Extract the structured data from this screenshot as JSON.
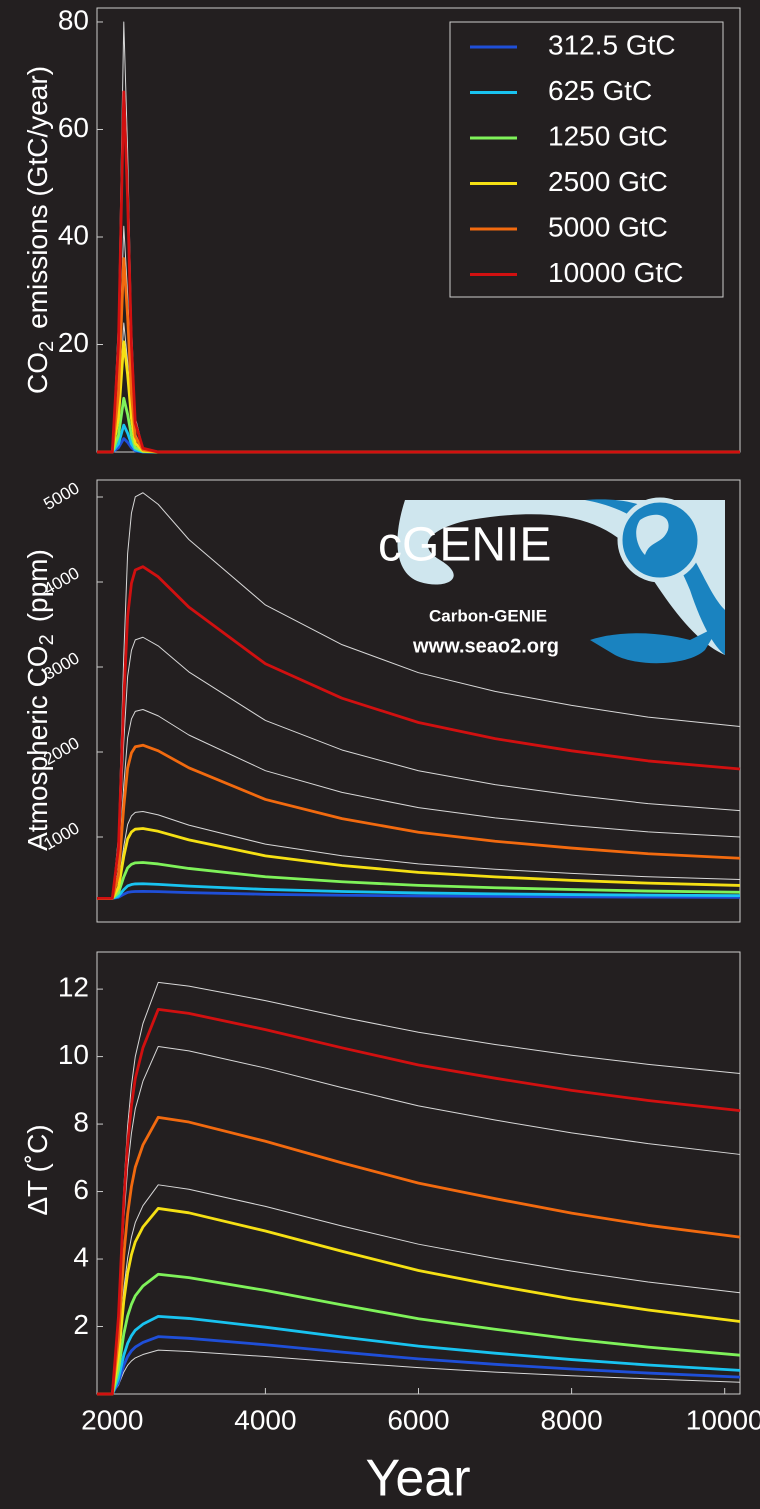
{
  "logo": {
    "title": "cGENIE",
    "subtitle": "Carbon-GENIE",
    "url": "www.seao2.org"
  },
  "chart_data": [
    {
      "type": "line",
      "ylabel": [
        "CO",
        "2",
        "emissions (GtC/year)"
      ],
      "x": [
        1800,
        2000,
        2080,
        2150,
        2200,
        2250,
        2300,
        2400,
        2600,
        3000,
        4000,
        5000,
        6000,
        7000,
        8000,
        9000,
        10200
      ],
      "xlim": [
        1800,
        10200
      ],
      "ylim": [
        0,
        82.6
      ],
      "yticks": [
        20,
        40,
        60,
        80
      ],
      "legend": "upper right",
      "series": [
        {
          "color": "#d8d8d8",
          "values": [
            0,
            0,
            24,
            80,
            56,
            24,
            6.4,
            0.8,
            0,
            0,
            0,
            0,
            0,
            0,
            0,
            0,
            0
          ]
        },
        {
          "color": "#d8d8d8",
          "values": [
            0,
            0,
            12.6,
            42,
            29.4,
            12.6,
            3.4,
            0.4,
            0,
            0,
            0,
            0,
            0,
            0,
            0,
            0,
            0
          ]
        },
        {
          "color": "#d8d8d8",
          "values": [
            0,
            0,
            7.2,
            24,
            16.8,
            7.2,
            1.9,
            0.2,
            0,
            0,
            0,
            0,
            0,
            0,
            0,
            0,
            0
          ]
        },
        {
          "name": "312.5 GtC",
          "color": "#1f4fd8",
          "values": [
            0,
            0,
            0.8,
            2.5,
            1.8,
            0.8,
            0.2,
            0,
            0,
            0,
            0,
            0,
            0,
            0,
            0,
            0,
            0
          ]
        },
        {
          "name": "625 GtC",
          "color": "#19c3f0",
          "values": [
            0,
            0,
            1.5,
            5,
            3.5,
            1.5,
            0.4,
            0.05,
            0,
            0,
            0,
            0,
            0,
            0,
            0,
            0,
            0
          ]
        },
        {
          "name": "1250 GtC",
          "color": "#7ff25a",
          "values": [
            0,
            0,
            3,
            10,
            7,
            3,
            0.8,
            0.1,
            0,
            0,
            0,
            0,
            0,
            0,
            0,
            0,
            0
          ]
        },
        {
          "name": "2500 GtC",
          "color": "#f5e014",
          "values": [
            0,
            0,
            6.2,
            20.5,
            14.4,
            6.2,
            1.6,
            0.2,
            0,
            0,
            0,
            0,
            0,
            0,
            0,
            0,
            0
          ]
        },
        {
          "name": "5000 GtC",
          "color": "#f26a0f",
          "values": [
            0,
            0,
            10.8,
            36,
            25.2,
            10.8,
            2.9,
            0.4,
            0,
            0,
            0,
            0,
            0,
            0,
            0,
            0,
            0
          ]
        },
        {
          "name": "10000 GtC",
          "color": "#d11010",
          "values": [
            0,
            0,
            20,
            67,
            47,
            20,
            5.4,
            0.7,
            0,
            0,
            0,
            0,
            0,
            0,
            0,
            0,
            0
          ]
        }
      ]
    },
    {
      "type": "line",
      "ylabel": [
        "Atmospheric CO",
        "2",
        "(ppm)"
      ],
      "x": [
        1800,
        2000,
        2080,
        2150,
        2200,
        2250,
        2300,
        2400,
        2600,
        3000,
        4000,
        5000,
        6000,
        7000,
        8000,
        9000,
        10200
      ],
      "xlim": [
        1800,
        10200
      ],
      "ylim": [
        0,
        5200
      ],
      "yticks": [
        1000,
        2000,
        3000,
        4000,
        5000
      ],
      "series": [
        {
          "color": "#d8d8d8",
          "values": [
            278,
            278,
            994,
            3141,
            4334,
            4811,
            5002,
            5050,
            4913,
            4500,
            3730,
            3263,
            2933,
            2713,
            2548,
            2410,
            2300
          ]
        },
        {
          "color": "#d8d8d8",
          "values": [
            278,
            278,
            739,
            2121,
            2889,
            3196,
            3319,
            3350,
            3248,
            2942,
            2371,
            2024,
            1779,
            1616,
            1494,
            1392,
            1310
          ]
        },
        {
          "color": "#d8d8d8",
          "values": [
            278,
            278,
            611,
            1611,
            2167,
            2389,
            2478,
            2500,
            2425,
            2200,
            1780,
            1525,
            1345,
            1225,
            1135,
            1060,
            1000
          ]
        },
        {
          "color": "#d8d8d8",
          "values": [
            278,
            278,
            431,
            891,
            1147,
            1249,
            1290,
            1300,
            1260,
            1140,
            916,
            780,
            684,
            620,
            572,
            532,
            500
          ]
        },
        {
          "color": "#1f4fd8",
          "values": [
            278,
            278,
            290,
            327,
            348,
            356,
            359,
            360,
            357,
            346,
            326,
            315,
            306,
            301,
            296,
            293,
            290
          ]
        },
        {
          "color": "#19c3f0",
          "values": [
            278,
            278,
            304,
            381,
            424,
            441,
            448,
            450,
            443,
            422,
            383,
            359,
            342,
            331,
            323,
            316,
            310
          ]
        },
        {
          "color": "#7ff25a",
          "values": [
            278,
            278,
            341,
            531,
            637,
            679,
            696,
            700,
            683,
            630,
            532,
            473,
            431,
            403,
            382,
            364,
            350
          ]
        },
        {
          "color": "#f5e014",
          "values": [
            278,
            278,
            401,
            771,
            977,
            1059,
            1092,
            1100,
            1067,
            966,
            778,
            665,
            584,
            531,
            490,
            457,
            430
          ]
        },
        {
          "color": "#f26a0f",
          "values": [
            278,
            278,
            548,
            1359,
            1810,
            1990,
            2062,
            2080,
            2014,
            1814,
            1442,
            1216,
            1056,
            950,
            870,
            803,
            750
          ]
        },
        {
          "color": "#d11010",
          "values": [
            278,
            278,
            863,
            2619,
            3595,
            3985,
            4141,
            4180,
            4061,
            3704,
            3038,
            2633,
            2347,
            2157,
            2014,
            1895,
            1800
          ]
        }
      ]
    },
    {
      "type": "line",
      "ylabel": [
        "ΔT (˚C)"
      ],
      "xlabel": "Year",
      "x": [
        1800,
        2000,
        2080,
        2150,
        2200,
        2250,
        2300,
        2400,
        2600,
        3000,
        4000,
        5000,
        6000,
        7000,
        8000,
        9000,
        10200
      ],
      "xlim": [
        1800,
        10200
      ],
      "xticks": [
        2000,
        4000,
        6000,
        8000,
        10000
      ],
      "ylim": [
        0,
        13.1
      ],
      "yticks": [
        2,
        4,
        6,
        8,
        10,
        12
      ],
      "series": [
        {
          "color": "#d8d8d8",
          "values": [
            0,
            0,
            2.44,
            6.1,
            7.93,
            9.15,
            10.0,
            10.98,
            12.2,
            12.09,
            11.66,
            11.17,
            10.72,
            10.36,
            10.04,
            9.77,
            9.5
          ]
        },
        {
          "color": "#d8d8d8",
          "values": [
            0,
            0,
            2.06,
            5.15,
            6.7,
            7.73,
            8.45,
            9.27,
            10.3,
            10.17,
            9.66,
            9.08,
            8.54,
            8.12,
            7.74,
            7.42,
            7.1
          ]
        },
        {
          "color": "#d8d8d8",
          "values": [
            0,
            0,
            1.24,
            3.1,
            4.03,
            4.65,
            5.08,
            5.58,
            6.2,
            6.07,
            5.56,
            4.98,
            4.44,
            4.02,
            3.64,
            3.32,
            3.0
          ]
        },
        {
          "color": "#d8d8d8",
          "values": [
            0,
            0,
            0.26,
            0.65,
            0.85,
            0.98,
            1.07,
            1.17,
            1.3,
            1.26,
            1.11,
            0.94,
            0.78,
            0.65,
            0.54,
            0.45,
            0.35
          ]
        },
        {
          "color": "#1f4fd8",
          "values": [
            0,
            0,
            0.34,
            0.85,
            1.11,
            1.28,
            1.39,
            1.53,
            1.7,
            1.65,
            1.46,
            1.24,
            1.04,
            0.88,
            0.74,
            0.62,
            0.5
          ]
        },
        {
          "color": "#19c3f0",
          "values": [
            0,
            0,
            0.46,
            1.15,
            1.5,
            1.73,
            1.89,
            2.07,
            2.3,
            2.24,
            1.98,
            1.69,
            1.42,
            1.21,
            1.02,
            0.86,
            0.7
          ]
        },
        {
          "color": "#7ff25a",
          "values": [
            0,
            0,
            0.71,
            1.78,
            2.31,
            2.66,
            2.91,
            3.2,
            3.55,
            3.45,
            3.07,
            2.64,
            2.23,
            1.92,
            1.63,
            1.39,
            1.15
          ]
        },
        {
          "color": "#f5e014",
          "values": [
            0,
            0,
            1.1,
            2.75,
            3.58,
            4.13,
            4.51,
            4.95,
            5.5,
            5.37,
            4.83,
            4.23,
            3.66,
            3.22,
            2.82,
            2.49,
            2.15
          ]
        },
        {
          "color": "#f26a0f",
          "values": [
            0,
            0,
            1.64,
            4.1,
            5.33,
            6.15,
            6.72,
            7.38,
            8.2,
            8.06,
            7.49,
            6.85,
            6.25,
            5.79,
            5.36,
            5.0,
            4.65
          ]
        },
        {
          "color": "#d11010",
          "values": [
            0,
            0,
            2.28,
            5.7,
            7.41,
            8.55,
            9.35,
            10.26,
            11.4,
            11.28,
            10.8,
            10.26,
            9.75,
            9.36,
            9.0,
            8.7,
            8.4
          ]
        }
      ]
    }
  ]
}
